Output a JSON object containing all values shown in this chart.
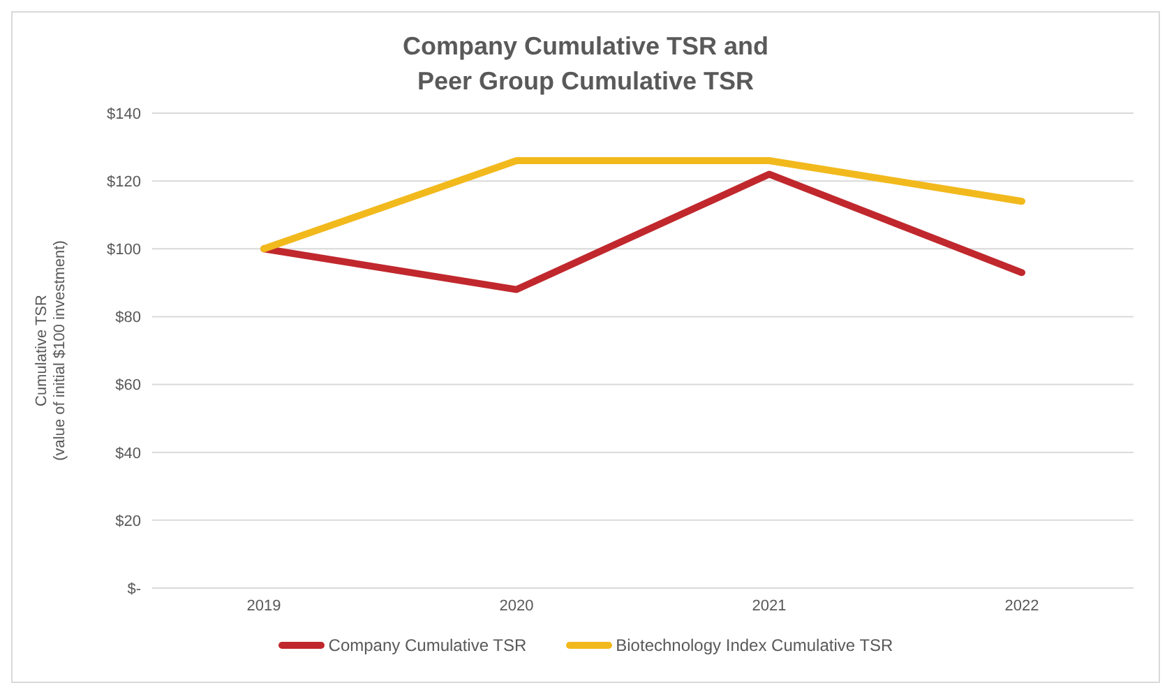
{
  "chart_data": {
    "type": "line",
    "title": "Company Cumulative TSR and Peer Group Cumulative TSR",
    "ylabel": "Cumulative TSR\n(value of initial $100 investment)",
    "categories": [
      "2019",
      "2020",
      "2021",
      "2022"
    ],
    "series": [
      {
        "name": "Company Cumulative TSR",
        "color": "#c0282d",
        "values": [
          100,
          88,
          122,
          93
        ]
      },
      {
        "name": "Biotechnology Index Cumulative TSR",
        "color": "#f2b91d",
        "values": [
          100,
          126,
          126,
          114
        ]
      }
    ],
    "ylim": [
      0,
      140
    ],
    "yticks": [
      {
        "value": 0,
        "label": "$-"
      },
      {
        "value": 20,
        "label": "$20"
      },
      {
        "value": 40,
        "label": "$40"
      },
      {
        "value": 60,
        "label": "$60"
      },
      {
        "value": 80,
        "label": "$80"
      },
      {
        "value": 100,
        "label": "$100"
      },
      {
        "value": 120,
        "label": "$120"
      },
      {
        "value": 140,
        "label": "$140"
      }
    ],
    "grid": "y",
    "legend": "bottom",
    "marker": "none",
    "line_style": "solid"
  }
}
